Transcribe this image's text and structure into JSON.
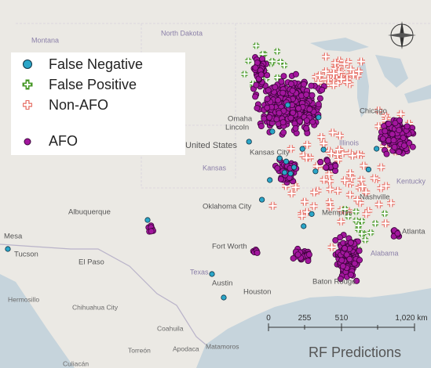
{
  "legend": {
    "items": [
      {
        "label": "False Negative"
      },
      {
        "label": "False Positive"
      },
      {
        "label": "Non-AFO"
      },
      {
        "label": "AFO"
      }
    ]
  },
  "map": {
    "cities": [
      "Montana",
      "North Dakota",
      "Omaha",
      "Lincoln",
      "United States",
      "Kansas",
      "Kansas City",
      "Chicago",
      "Illinois",
      "Kentucky",
      "Nashville",
      "Memphis",
      "Oklahoma City",
      "Albuquerque",
      "Mesa",
      "Tucson",
      "El Paso",
      "Fort Worth",
      "Texas",
      "Austin",
      "Houston",
      "Baton Rouge",
      "Alabama",
      "Atlanta",
      "Hermosillo",
      "Chihuahua City",
      "Coahuila",
      "Torreón",
      "Apodaca",
      "Matamoros",
      "Culiacán"
    ]
  },
  "scale": {
    "labels": [
      "0",
      "255",
      "510",
      "1,020 km"
    ]
  },
  "caption": "RF Predictions"
}
